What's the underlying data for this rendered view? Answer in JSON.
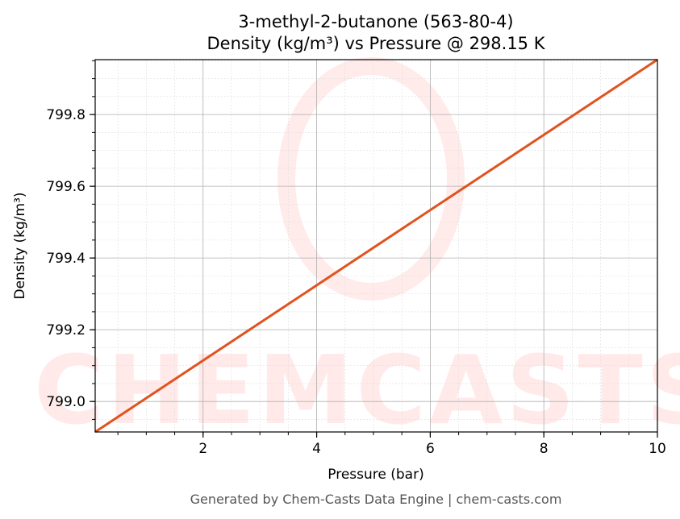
{
  "chart_data": {
    "type": "line",
    "title": "3-methyl-2-butanone (563-80-4)",
    "subtitle": "Density (kg/m³) vs Pressure @ 298.15 K",
    "xlabel": "Pressure (bar)",
    "ylabel": "Density (kg/m³)",
    "xlim": [
      0.1,
      10
    ],
    "ylim": [
      798.915,
      799.953
    ],
    "xticks": [
      2,
      4,
      6,
      8,
      10
    ],
    "xtick_labels": [
      "2",
      "4",
      "6",
      "8",
      "10"
    ],
    "yticks": [
      799.0,
      799.2,
      799.4,
      799.6,
      799.8
    ],
    "ytick_labels": [
      "799.0",
      "799.2",
      "799.4",
      "799.6",
      "799.8"
    ],
    "grid": true,
    "series": [
      {
        "x": [
          0.1,
          10
        ],
        "y": [
          798.915,
          799.953
        ],
        "color": "#e0531f"
      }
    ],
    "watermark": "CHEMCASTS",
    "footer": "Generated by Chem-Casts Data Engine | chem-casts.com"
  }
}
